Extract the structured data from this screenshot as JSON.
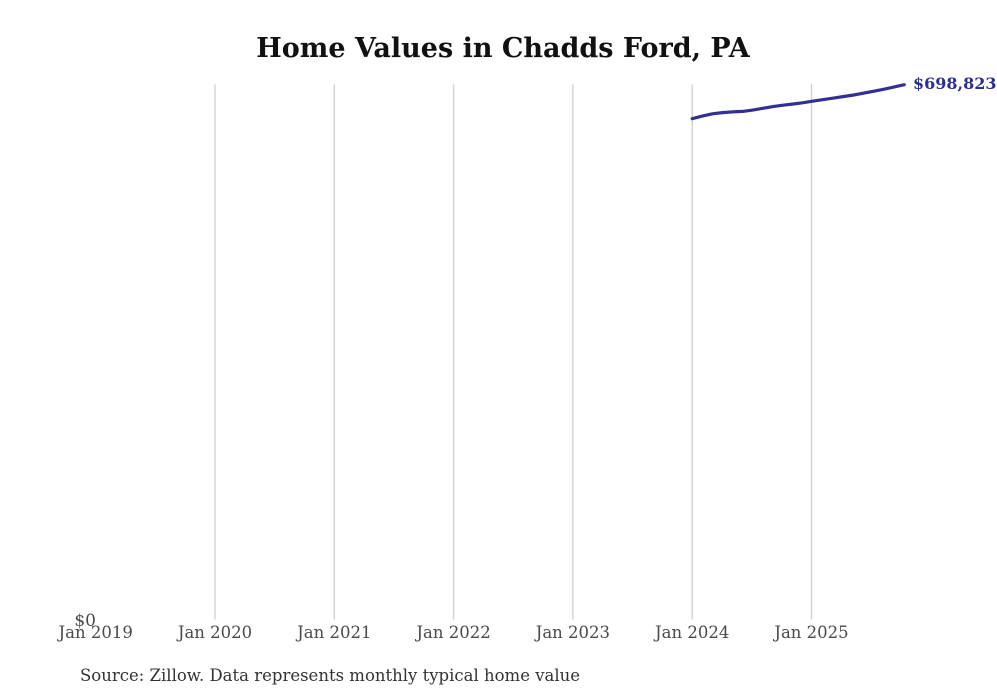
{
  "title": "Home Values in Chadds Ford, PA",
  "source_note": "Source: Zillow. Data represents monthly typical home value",
  "end_value_label": "$698,823",
  "y_zero_label": "$0",
  "colors": {
    "line": "#332f93",
    "end_label": "#2c2f8e",
    "grid": "#d2d2d2",
    "title_text": "#111111",
    "axis_text": "#4a4a4a",
    "source_text": "#333333",
    "background": "#ffffff"
  },
  "chart_data": {
    "type": "line",
    "title": "Home Values in Chadds Ford, PA",
    "xlabel": "",
    "ylabel": "",
    "grid": "vertical-only",
    "legend": "none",
    "ylim": [
      0,
      700000
    ],
    "y_tick_labels": [
      "$0"
    ],
    "x_ticks": [
      {
        "label": "Jan 2019",
        "gridline": false
      },
      {
        "label": "Jan 2020",
        "gridline": true
      },
      {
        "label": "Jan 2021",
        "gridline": true
      },
      {
        "label": "Jan 2022",
        "gridline": true
      },
      {
        "label": "Jan 2023",
        "gridline": true
      },
      {
        "label": "Jan 2024",
        "gridline": true
      },
      {
        "label": "Jan 2025",
        "gridline": true
      }
    ],
    "series": [
      {
        "name": "Monthly typical home value",
        "x": [
          "Jan 2024",
          "Feb 2024",
          "Mar 2024",
          "Apr 2024",
          "May 2024",
          "Jun 2024",
          "Jul 2024",
          "Aug 2024",
          "Sep 2024",
          "Oct 2024",
          "Nov 2024",
          "Dec 2024",
          "Jan 2025",
          "Feb 2025",
          "Mar 2025",
          "Apr 2025",
          "May 2025",
          "Jun 2025",
          "Jul 2025",
          "Aug 2025",
          "Sep 2025",
          "Oct 2025"
        ],
        "values": [
          654500,
          658000,
          661000,
          662500,
          663400,
          664100,
          665800,
          668100,
          670300,
          672200,
          673700,
          675400,
          677500,
          679400,
          681400,
          683500,
          685400,
          687900,
          690400,
          693000,
          695900,
          698823
        ]
      }
    ],
    "end_value_label": "$698,823"
  }
}
